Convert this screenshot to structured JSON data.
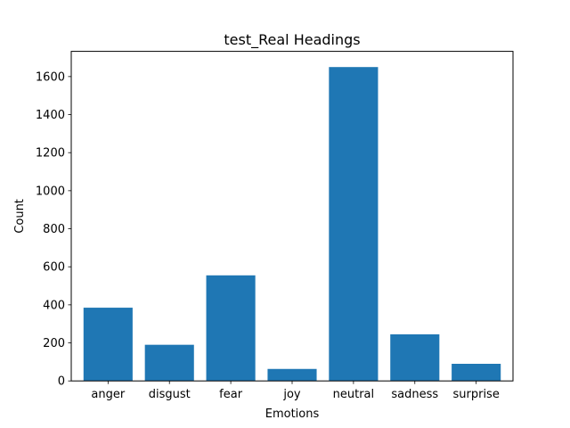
{
  "chart_data": {
    "type": "bar",
    "title": "test_Real Headings",
    "xlabel": "Emotions",
    "ylabel": "Count",
    "categories": [
      "anger",
      "disgust",
      "fear",
      "joy",
      "neutral",
      "sadness",
      "surprise"
    ],
    "values": [
      385,
      190,
      555,
      63,
      1650,
      245,
      90
    ],
    "ylim": [
      0,
      1732.5
    ],
    "yticks": [
      0,
      200,
      400,
      600,
      800,
      1000,
      1200,
      1400,
      1600
    ],
    "grid": false,
    "legend": "none",
    "colors": {
      "bar": "#1f77b4",
      "axis": "#000000",
      "background": "#ffffff"
    }
  }
}
